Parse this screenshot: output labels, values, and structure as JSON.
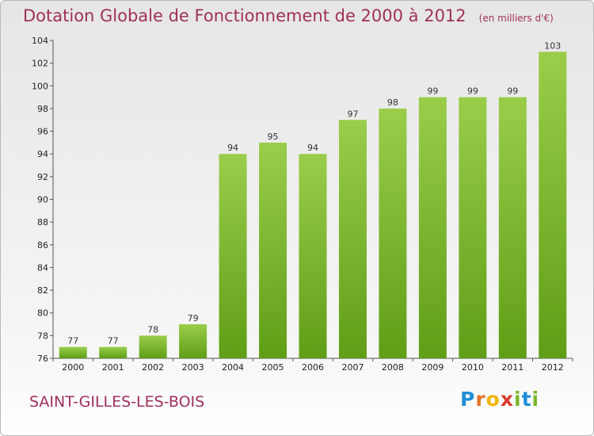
{
  "chart_data": {
    "type": "bar",
    "title": "Dotation Globale de Fonctionnement de 2000 à 2012",
    "unit": "(en milliers d'€)",
    "categories": [
      "2000",
      "2001",
      "2002",
      "2003",
      "2004",
      "2005",
      "2006",
      "2007",
      "2008",
      "2009",
      "2010",
      "2011",
      "2012"
    ],
    "values": [
      77,
      77,
      78,
      79,
      94,
      95,
      94,
      97,
      98,
      99,
      99,
      99,
      103
    ],
    "ylim": [
      76,
      104
    ],
    "yticks": [
      76,
      78,
      80,
      82,
      84,
      86,
      88,
      90,
      92,
      94,
      96,
      98,
      100,
      102,
      104
    ],
    "grid": false,
    "bar_color_top": "#9acd4a",
    "bar_color_bottom": "#5f9e16"
  },
  "commune": "SAINT-GILLES-LES-BOIS",
  "logo": {
    "letters": [
      "P",
      "r",
      "o",
      "x",
      "i",
      "t",
      "i"
    ],
    "colors": [
      "#1f8fd8",
      "#e8732a",
      "#f0b400",
      "#d83a2a",
      "#7ab82a",
      "#1f8fd8",
      "#7ab82a"
    ]
  }
}
